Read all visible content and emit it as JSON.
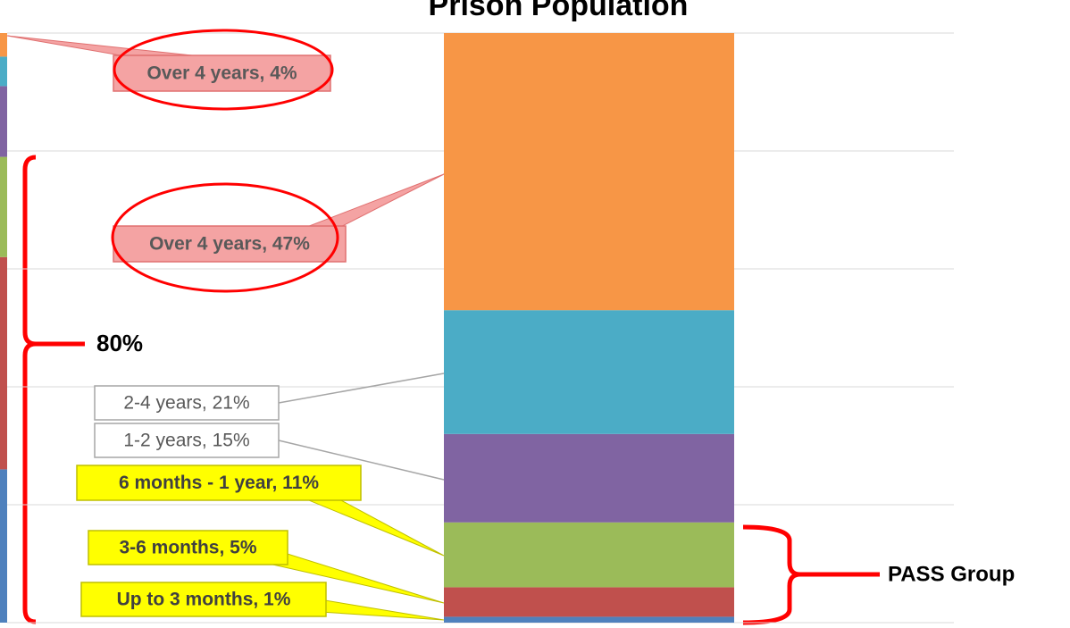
{
  "chart_data": [
    {
      "type": "bar",
      "stacked": true,
      "ylim": [
        0,
        100
      ],
      "yticks": [
        0,
        20,
        40,
        60,
        80,
        100
      ],
      "grid": false,
      "series": [
        {
          "color": "#4f81bd",
          "values": [
            26
          ]
        },
        {
          "color": "#c0504d",
          "values": [
            36
          ]
        },
        {
          "color": "#9bbb59",
          "values": [
            17
          ]
        },
        {
          "color": "#8064a2",
          "values": [
            12
          ]
        },
        {
          "color": "#4bacc6",
          "values": [
            5
          ]
        },
        {
          "color": "#f79646",
          "values": [
            4
          ],
          "value_labels": [
            "Over 4 years, 4%"
          ]
        }
      ]
    },
    {
      "type": "bar",
      "stacked": true,
      "title": "Prison Population",
      "ylim": [
        0,
        100
      ],
      "yticks": [
        0,
        20,
        40,
        60,
        80,
        100
      ],
      "grid": true,
      "series": [
        {
          "color": "#4f81bd",
          "values": [
            1
          ],
          "value_labels": [
            "Up to 3 months, 1%"
          ]
        },
        {
          "color": "#c0504d",
          "values": [
            5
          ],
          "value_labels": [
            "3-6 months, 5%"
          ]
        },
        {
          "color": "#9bbb59",
          "values": [
            11
          ],
          "value_labels": [
            "6 months - 1 year, 11%"
          ]
        },
        {
          "color": "#8064a2",
          "values": [
            15
          ],
          "value_labels": [
            "1-2 years, 15%"
          ]
        },
        {
          "color": "#4bacc6",
          "values": [
            21
          ],
          "value_labels": [
            "2-4 years, 21%"
          ]
        },
        {
          "color": "#f79646",
          "values": [
            47
          ],
          "value_labels": [
            "Over 4 years, 47%"
          ]
        }
      ]
    }
  ],
  "annotations": [
    "80%",
    "PASS Group"
  ]
}
